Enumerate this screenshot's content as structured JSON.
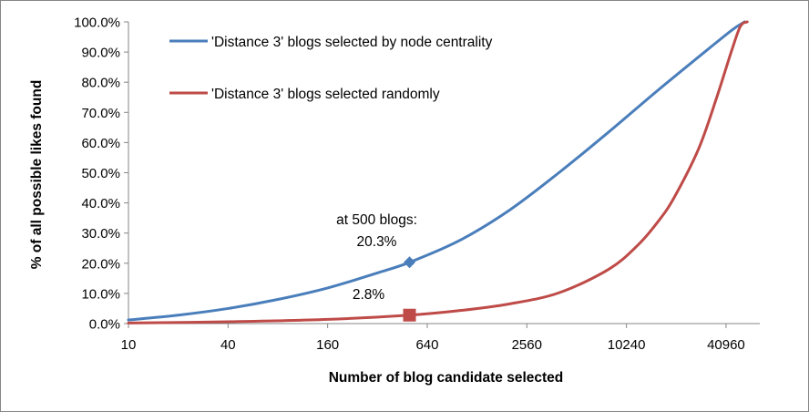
{
  "chart_data": {
    "type": "line",
    "title": "",
    "xlabel": "Number of blog candidate selected",
    "ylabel": "% of all possible likes found",
    "x_scale": "log2",
    "xlim": [
      10,
      65536
    ],
    "ylim": [
      0,
      100
    ],
    "x_tick_values": [
      10,
      40,
      160,
      640,
      2560,
      10240,
      40960
    ],
    "x_tick_labels": [
      "10",
      "40",
      "160",
      "640",
      "2560",
      "10240",
      "40960"
    ],
    "y_tick_values": [
      0,
      10,
      20,
      30,
      40,
      50,
      60,
      70,
      80,
      90,
      100
    ],
    "y_tick_labels": [
      "0.0%",
      "10.0%",
      "20.0%",
      "30.0%",
      "40.0%",
      "50.0%",
      "60.0%",
      "70.0%",
      "80.0%",
      "90.0%",
      "100.0%"
    ],
    "grid": false,
    "legend_position": "top-left",
    "series": [
      {
        "name": "'Distance 3' blogs selected by node centrality",
        "color": "#4A7EBB",
        "x": [
          10,
          20,
          40,
          80,
          160,
          320,
          500,
          1000,
          2000,
          4000,
          8000,
          16000,
          32000,
          45000,
          53000
        ],
        "y": [
          1.2,
          2.8,
          5.0,
          8.0,
          11.8,
          16.8,
          20.3,
          27.5,
          37.5,
          50.0,
          63.5,
          77.5,
          91.0,
          97.5,
          100.0
        ]
      },
      {
        "name": "'Distance 3' blogs selected randomly",
        "color": "#BE4B48",
        "x": [
          10,
          40,
          160,
          500,
          1000,
          2000,
          4000,
          8000,
          12000,
          16000,
          20000,
          28000,
          36000,
          44000,
          50000,
          55000
        ],
        "y": [
          0.2,
          0.6,
          1.4,
          2.8,
          4.3,
          6.5,
          10.2,
          18.0,
          26.0,
          34.0,
          42.0,
          58.0,
          75.0,
          90.0,
          98.5,
          100.0
        ]
      }
    ],
    "markers": [
      {
        "series_index": 0,
        "x": 500,
        "y": 20.3,
        "shape": "diamond"
      },
      {
        "series_index": 1,
        "x": 500,
        "y": 2.8,
        "shape": "square"
      }
    ],
    "annotations": [
      {
        "id": "blue",
        "lines": [
          "at 500 blogs:",
          "20.3%"
        ]
      },
      {
        "id": "red",
        "lines": [
          "2.8%"
        ]
      }
    ]
  }
}
